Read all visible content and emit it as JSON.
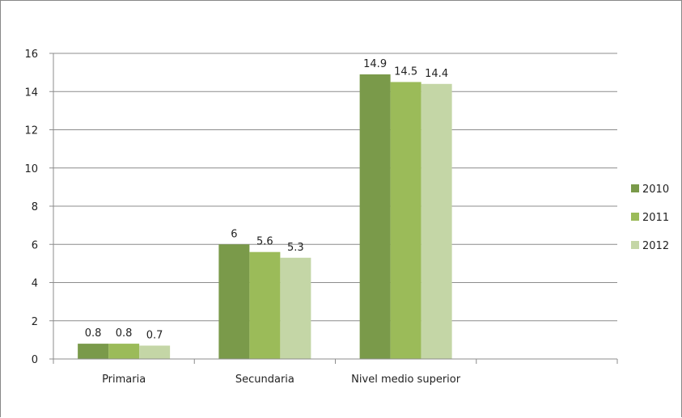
{
  "chart_data": {
    "type": "bar",
    "categories": [
      "Primaria",
      "Secundaria",
      "Nivel medio superior",
      ""
    ],
    "series": [
      {
        "name": "2010",
        "values": [
          0.8,
          6,
          14.9,
          null
        ],
        "color": "#7a9a4a"
      },
      {
        "name": "2011",
        "values": [
          0.8,
          5.6,
          14.5,
          null
        ],
        "color": "#9bbb59"
      },
      {
        "name": "2012",
        "values": [
          0.7,
          5.3,
          14.4,
          null
        ],
        "color": "#c4d6a6"
      }
    ],
    "data_labels": [
      [
        "0.8",
        "6",
        "14.9"
      ],
      [
        "0.8",
        "5.6",
        "14.5"
      ],
      [
        "0.7",
        "5.3",
        "14.4"
      ]
    ],
    "y_ticks": [
      "0",
      "2",
      "4",
      "6",
      "8",
      "10",
      "12",
      "14",
      "16"
    ],
    "title": "",
    "xlabel": "",
    "ylabel": "",
    "ylim": [
      0,
      16
    ],
    "grid": true,
    "legend_position": "right"
  }
}
